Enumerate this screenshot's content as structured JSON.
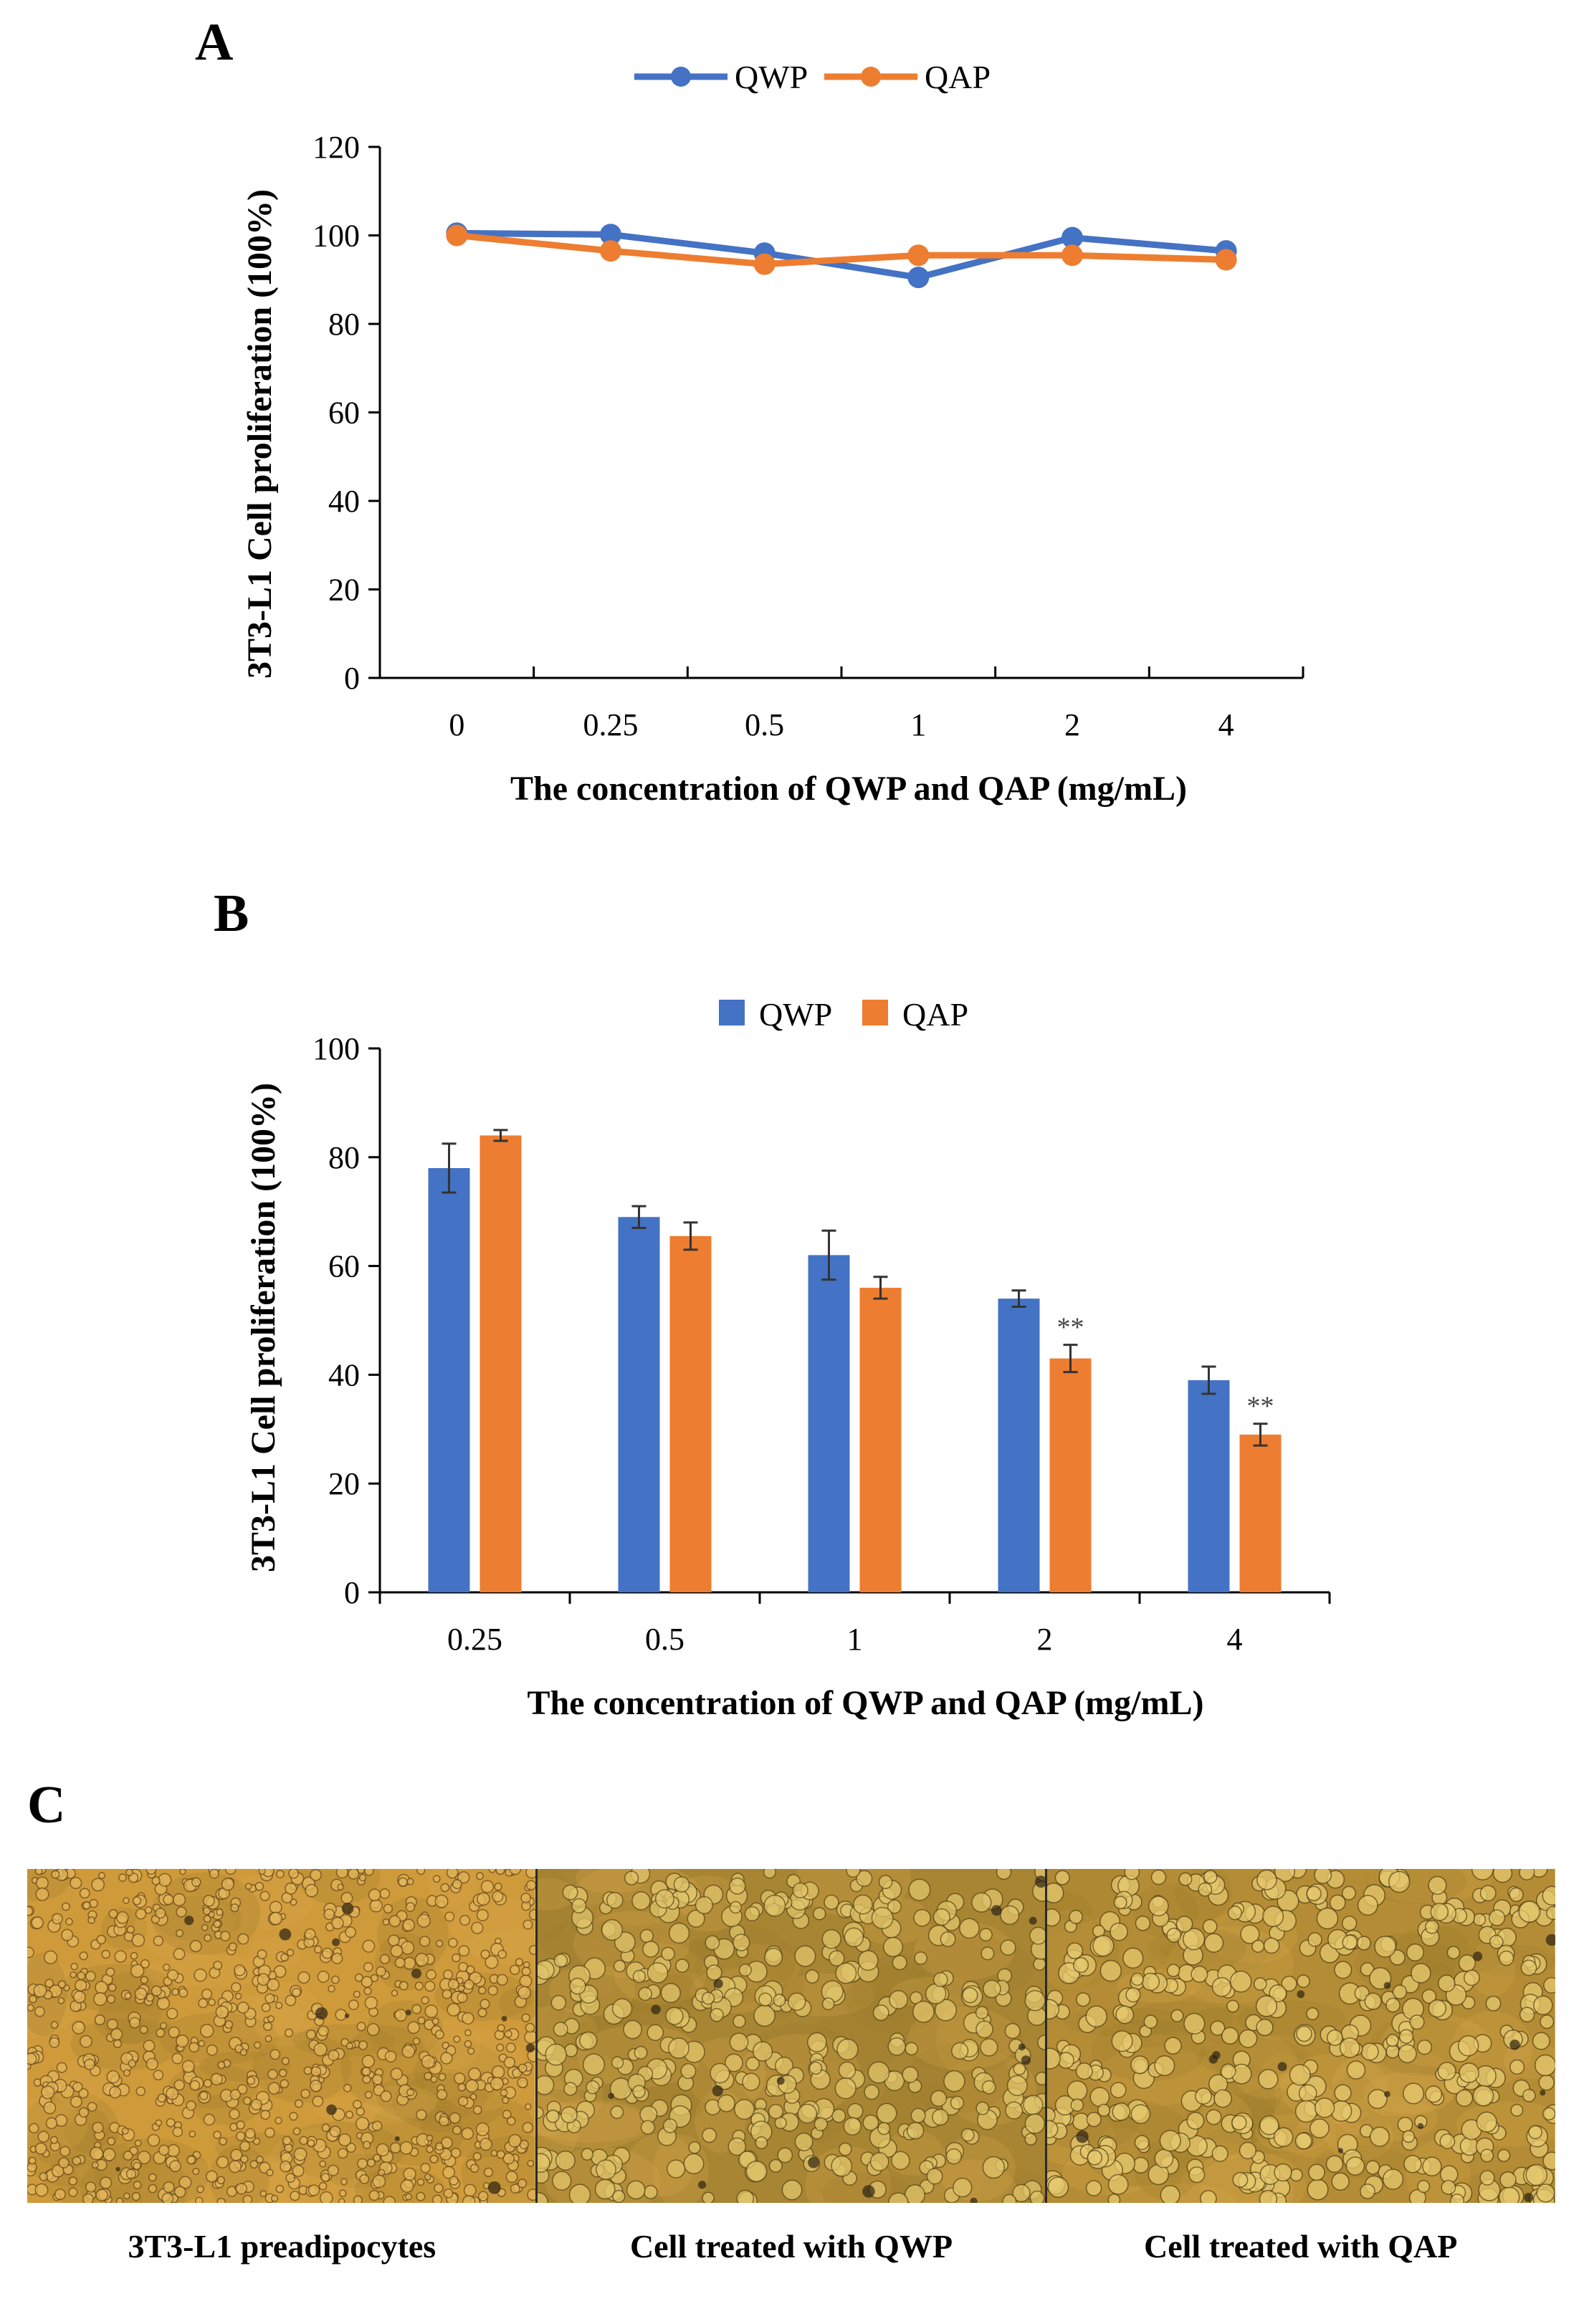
{
  "panels": {
    "a": "A",
    "b": "B",
    "c": "C"
  },
  "colors": {
    "qwp": "#4472C4",
    "qap": "#ED7D31"
  },
  "chart_data": [
    {
      "type": "line",
      "title": "",
      "xlabel": "The concentration of QWP and QAP (mg/mL)",
      "ylabel": "3T3-L1 Cell proliferation (100%)",
      "categories": [
        "0",
        "0.25",
        "0.5",
        "1",
        "2",
        "4"
      ],
      "ylim": [
        0,
        120
      ],
      "yticks": [
        0,
        20,
        40,
        60,
        80,
        100,
        120
      ],
      "legend_position": "top-center",
      "grid": false,
      "series": [
        {
          "name": "QWP",
          "values": [
            100.5,
            100.2,
            96.0,
            90.5,
            99.5,
            96.5
          ]
        },
        {
          "name": "QAP",
          "values": [
            100.0,
            96.5,
            93.5,
            95.5,
            95.5,
            94.5
          ]
        }
      ]
    },
    {
      "type": "bar",
      "title": "",
      "xlabel": "The concentration of QWP and QAP (mg/mL)",
      "ylabel": "3T3-L1 Cell proliferation (100%)",
      "categories": [
        "0.25",
        "0.5",
        "1",
        "2",
        "4"
      ],
      "ylim": [
        0,
        100
      ],
      "yticks": [
        0,
        20,
        40,
        60,
        80,
        100
      ],
      "legend_position": "top-center",
      "grid": false,
      "series": [
        {
          "name": "QWP",
          "values": [
            78,
            69,
            62,
            54,
            39
          ],
          "errors": [
            4.5,
            2,
            4.5,
            1.5,
            2.5
          ]
        },
        {
          "name": "QAP",
          "values": [
            84,
            65.5,
            56,
            43,
            29
          ],
          "errors": [
            1,
            2.5,
            2,
            2.5,
            2
          ]
        }
      ],
      "annotations": [
        {
          "category": "2",
          "series": "QAP",
          "text": "**"
        },
        {
          "category": "4",
          "series": "QAP",
          "text": "**"
        }
      ]
    }
  ],
  "micrographs": [
    {
      "caption": "3T3-L1 preadipocytes"
    },
    {
      "caption": "Cell treated with QWP"
    },
    {
      "caption": "Cell treated with QAP"
    }
  ]
}
